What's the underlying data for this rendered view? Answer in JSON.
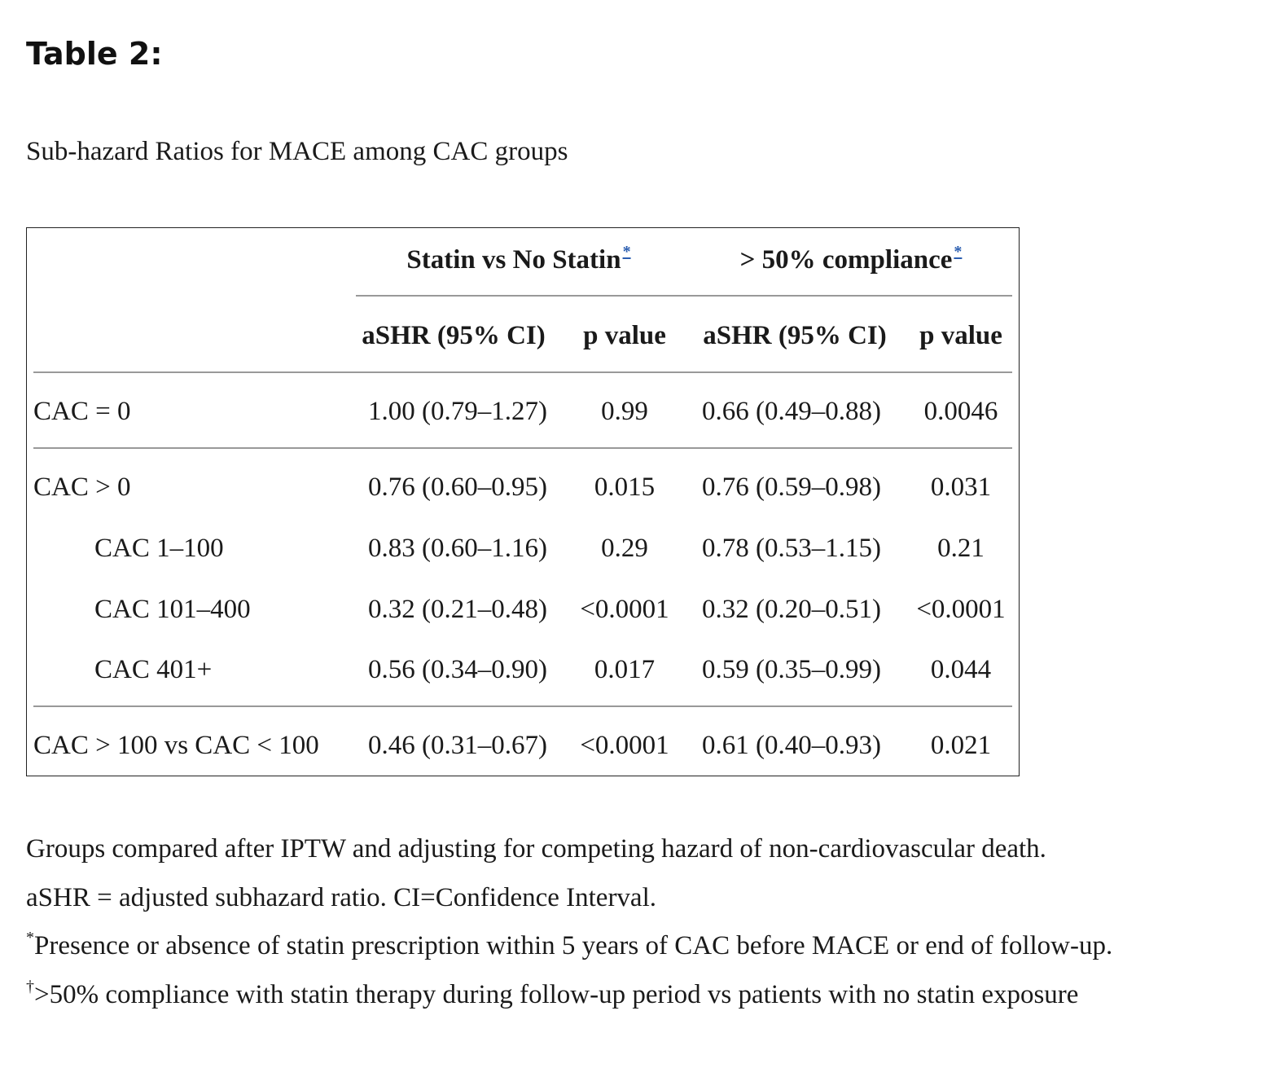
{
  "title": "Table 2:",
  "caption": "Sub-hazard Ratios for MACE among CAC groups",
  "table": {
    "group_headers": [
      {
        "label": "Statin vs No Statin",
        "marker": "*"
      },
      {
        "label": "> 50% compliance",
        "marker": "*"
      }
    ],
    "column_headers": [
      "aSHR (95% CI)",
      "p value",
      "aSHR (95% CI)",
      "p value"
    ],
    "rows": [
      {
        "label": "CAC = 0",
        "statin_ashr": "1.00 (0.79–1.27)",
        "statin_p": "0.99",
        "comp_ashr": "0.66 (0.49–0.88)",
        "comp_p": "0.0046"
      },
      {
        "label": "CAC > 0",
        "statin_ashr": "0.76 (0.60–0.95)",
        "statin_p": "0.015",
        "comp_ashr": "0.76 (0.59–0.98)",
        "comp_p": "0.031"
      },
      {
        "label": "CAC 1–100",
        "statin_ashr": "0.83 (0.60–1.16)",
        "statin_p": "0.29",
        "comp_ashr": "0.78 (0.53–1.15)",
        "comp_p": "0.21"
      },
      {
        "label": "CAC 101–400",
        "statin_ashr": "0.32 (0.21–0.48)",
        "statin_p": "<0.0001",
        "comp_ashr": "0.32 (0.20–0.51)",
        "comp_p": "<0.0001"
      },
      {
        "label": "CAC 401+",
        "statin_ashr": "0.56 (0.34–0.90)",
        "statin_p": "0.017",
        "comp_ashr": "0.59 (0.35–0.99)",
        "comp_p": "0.044"
      },
      {
        "label": "CAC > 100 vs CAC < 100",
        "statin_ashr": "0.46 (0.31–0.67)",
        "statin_p": "<0.0001",
        "comp_ashr": "0.61 (0.40–0.93)",
        "comp_p": "0.021"
      }
    ]
  },
  "footnotes": {
    "line1": "Groups compared after IPTW and adjusting for competing hazard of non-cardiovascular death.",
    "line2": "aSHR = adjusted subhazard ratio. CI=Confidence Interval.",
    "line3_marker": "*",
    "line3": "Presence or absence of statin prescription within 5 years of CAC before MACE or end of follow-up.",
    "line4_marker": "†",
    "line4": ">50% compliance with statin therapy during follow-up period vs patients with no statin exposure"
  }
}
